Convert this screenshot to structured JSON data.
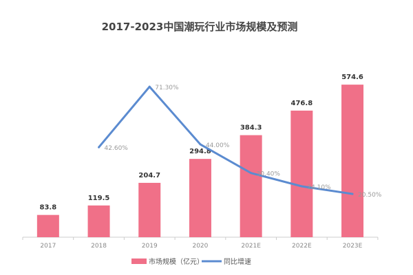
{
  "chart_data": {
    "type": "bar",
    "title": "2017-2023中国潮玩行业市场规模及预测",
    "categories": [
      "2017",
      "2018",
      "2019",
      "2020",
      "2021E",
      "2022E",
      "2023E"
    ],
    "series": [
      {
        "name": "市场规模（亿元）",
        "type": "bar",
        "axis": "left",
        "color": "#f07088",
        "values": [
          83.8,
          119.5,
          204.7,
          294.8,
          384.3,
          476.8,
          574.6
        ],
        "labels": [
          "83.8",
          "119.5",
          "204.7",
          "294.8",
          "384.3",
          "476.8",
          "574.6"
        ]
      },
      {
        "name": "同比增速",
        "type": "line",
        "axis": "right",
        "color": "#5b8bd0",
        "values": [
          null,
          42.6,
          71.3,
          44.0,
          30.4,
          24.1,
          20.5
        ],
        "labels": [
          "",
          "42.60%",
          "71.30%",
          "44.00%",
          "30.40%",
          "24.10%",
          "20.50%"
        ]
      }
    ],
    "ylim_left": [
      0,
      795
    ],
    "ylim_right": [
      0,
      100
    ],
    "grid": false,
    "legend": "bottom"
  }
}
